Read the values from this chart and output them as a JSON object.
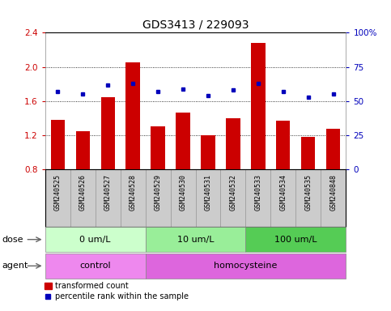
{
  "title": "GDS3413 / 229093",
  "samples": [
    "GSM240525",
    "GSM240526",
    "GSM240527",
    "GSM240528",
    "GSM240529",
    "GSM240530",
    "GSM240531",
    "GSM240532",
    "GSM240533",
    "GSM240534",
    "GSM240535",
    "GSM240848"
  ],
  "transformed_count": [
    1.38,
    1.25,
    1.65,
    2.05,
    1.3,
    1.47,
    1.2,
    1.4,
    2.28,
    1.37,
    1.18,
    1.28
  ],
  "percentile_rank": [
    57,
    55,
    62,
    63,
    57,
    59,
    54,
    58,
    63,
    57,
    53,
    55
  ],
  "bar_color": "#cc0000",
  "dot_color": "#0000bb",
  "ylim_left": [
    0.8,
    2.4
  ],
  "ylim_right": [
    0,
    100
  ],
  "yticks_left": [
    0.8,
    1.2,
    1.6,
    2.0,
    2.4
  ],
  "yticks_right": [
    0,
    25,
    50,
    75,
    100
  ],
  "ytick_labels_left": [
    "0.8",
    "1.2",
    "1.6",
    "2.0",
    "2.4"
  ],
  "ytick_labels_right": [
    "0",
    "25",
    "50",
    "75",
    "100%"
  ],
  "dose_groups": [
    {
      "label": "0 um/L",
      "start": 0,
      "end": 4,
      "color": "#ccffcc"
    },
    {
      "label": "10 um/L",
      "start": 4,
      "end": 8,
      "color": "#99ee99"
    },
    {
      "label": "100 um/L",
      "start": 8,
      "end": 12,
      "color": "#55cc55"
    }
  ],
  "agent_groups": [
    {
      "label": "control",
      "start": 0,
      "end": 4,
      "color": "#ee88ee"
    },
    {
      "label": "homocysteine",
      "start": 4,
      "end": 12,
      "color": "#dd66dd"
    }
  ],
  "dose_label": "dose",
  "agent_label": "agent",
  "legend_bar_label": "transformed count",
  "legend_dot_label": "percentile rank within the sample",
  "background_color": "#ffffff",
  "sample_bg": "#cccccc",
  "title_fontsize": 10,
  "tick_fontsize": 7.5,
  "label_fontsize": 8,
  "row_fontsize": 8
}
